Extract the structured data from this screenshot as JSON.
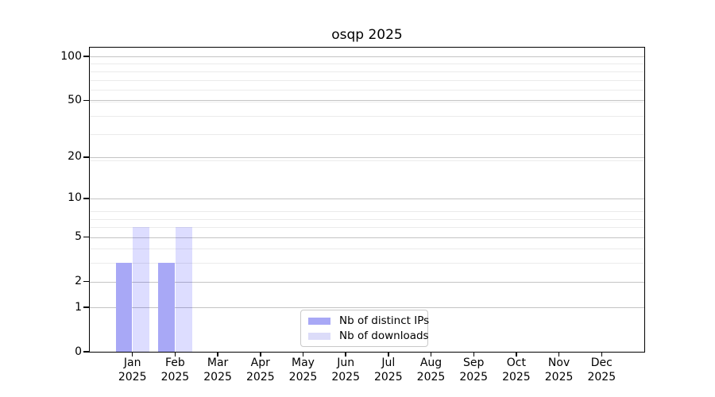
{
  "chart_data": {
    "type": "bar",
    "title": "osqp 2025",
    "categories": [
      "Jan 2025",
      "Feb 2025",
      "Mar 2025",
      "Apr 2025",
      "May 2025",
      "Jun 2025",
      "Jul 2025",
      "Aug 2025",
      "Sep 2025",
      "Oct 2025",
      "Nov 2025",
      "Dec 2025"
    ],
    "x_months": [
      "Jan",
      "Feb",
      "Mar",
      "Apr",
      "May",
      "Jun",
      "Jul",
      "Aug",
      "Sep",
      "Oct",
      "Nov",
      "Dec"
    ],
    "x_year": "2025",
    "series": [
      {
        "name": "Nb of distinct IPs",
        "color": "#a8a8f6",
        "values": [
          3,
          3,
          0,
          0,
          0,
          0,
          0,
          0,
          0,
          0,
          0,
          0
        ]
      },
      {
        "name": "Nb of downloads",
        "color": "rgba(0,0,255,0.135)",
        "swatch_color": "#dcdcf9",
        "values": [
          6,
          6,
          0,
          0,
          0,
          0,
          0,
          0,
          0,
          0,
          0,
          0
        ]
      }
    ],
    "xlabel": "",
    "ylabel": "",
    "y_scale": "log10(1+y)",
    "y_major_ticks": [
      0,
      1,
      2,
      5,
      10,
      20,
      50,
      100
    ],
    "y_minor_gridlines": [
      3,
      4,
      6,
      7,
      8,
      19,
      29,
      39,
      49,
      59,
      69,
      79,
      89
    ],
    "ylim": [
      0,
      115
    ],
    "grid": "horizontal",
    "legend_position": "lower center"
  },
  "colors": {
    "background": "#ffffff",
    "bar_distinct_ips": "#a8a8f6",
    "bar_downloads": "#dcdcf9",
    "grid_major": "#c4c4c4",
    "grid_minor": "#ebebeb",
    "axis_spine": "#000000",
    "legend_border": "#c9c9c9",
    "text": "#000000"
  }
}
